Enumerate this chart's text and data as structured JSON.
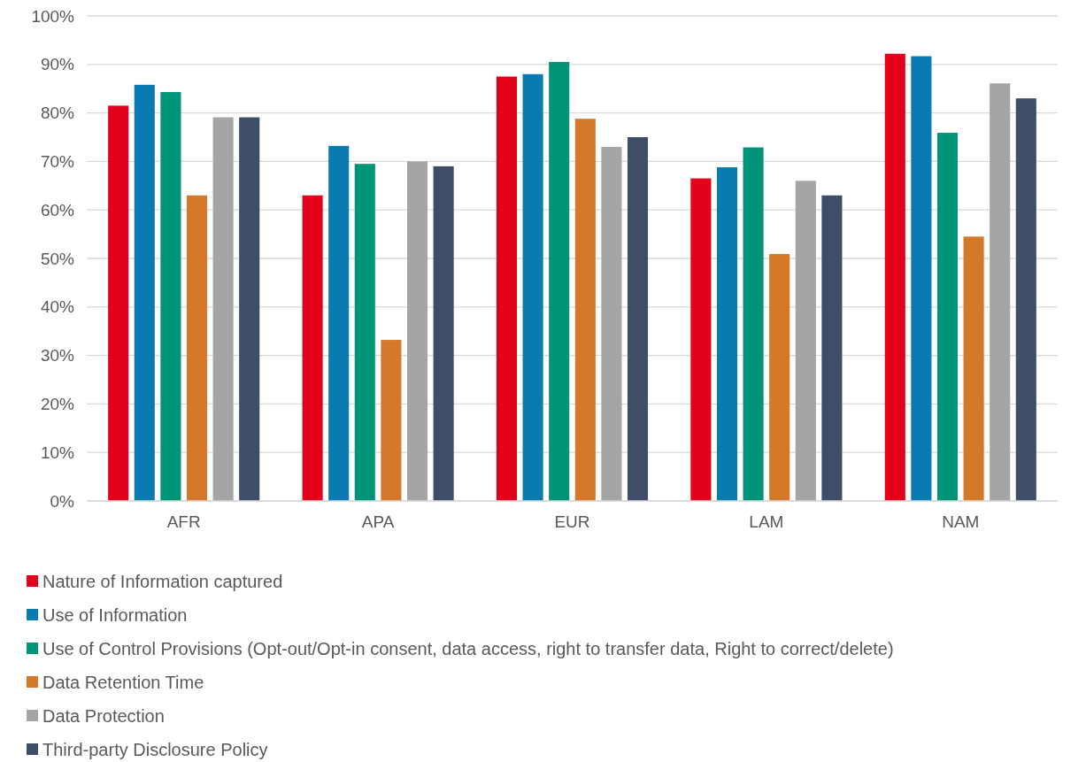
{
  "chart_data": {
    "type": "bar",
    "categories": [
      "AFR",
      "APA",
      "EUR",
      "LAM",
      "NAM"
    ],
    "series": [
      {
        "name": "Nature of Information captured",
        "color": "#e2001a",
        "values": [
          81.5,
          63,
          87.5,
          66.5,
          92.2
        ]
      },
      {
        "name": "Use of Information",
        "color": "#0a7bb0",
        "values": [
          85.8,
          73.2,
          88,
          68.8,
          91.7
        ]
      },
      {
        "name": "Use of Control Provisions (Opt-out/Opt-in consent, data access, right to transfer data, Right to correct/delete)",
        "color": "#009479",
        "values": [
          84.3,
          69.5,
          90.5,
          72.9,
          75.9
        ]
      },
      {
        "name": "Data Retention Time",
        "color": "#d4782a",
        "values": [
          63,
          33.2,
          78.8,
          50.9,
          54.5
        ]
      },
      {
        "name": "Data Protection",
        "color": "#a5a5a5",
        "values": [
          79.1,
          70,
          73,
          66,
          86.1
        ]
      },
      {
        "name": "Third-party Disclosure Policy",
        "color": "#3e4e69",
        "values": [
          79.1,
          69,
          75,
          63,
          83
        ]
      }
    ],
    "ylim": [
      0,
      100
    ],
    "yticks": [
      {
        "value": 0,
        "label": "0%"
      },
      {
        "value": 10,
        "label": "10%"
      },
      {
        "value": 20,
        "label": "20%"
      },
      {
        "value": 30,
        "label": "30%"
      },
      {
        "value": 40,
        "label": "40%"
      },
      {
        "value": 50,
        "label": "50%"
      },
      {
        "value": 60,
        "label": "60%"
      },
      {
        "value": 70,
        "label": "70%"
      },
      {
        "value": 80,
        "label": "80%"
      },
      {
        "value": 90,
        "label": "90%"
      },
      {
        "value": 100,
        "label": "100%"
      }
    ],
    "grid": "y",
    "legend": "bottom"
  }
}
